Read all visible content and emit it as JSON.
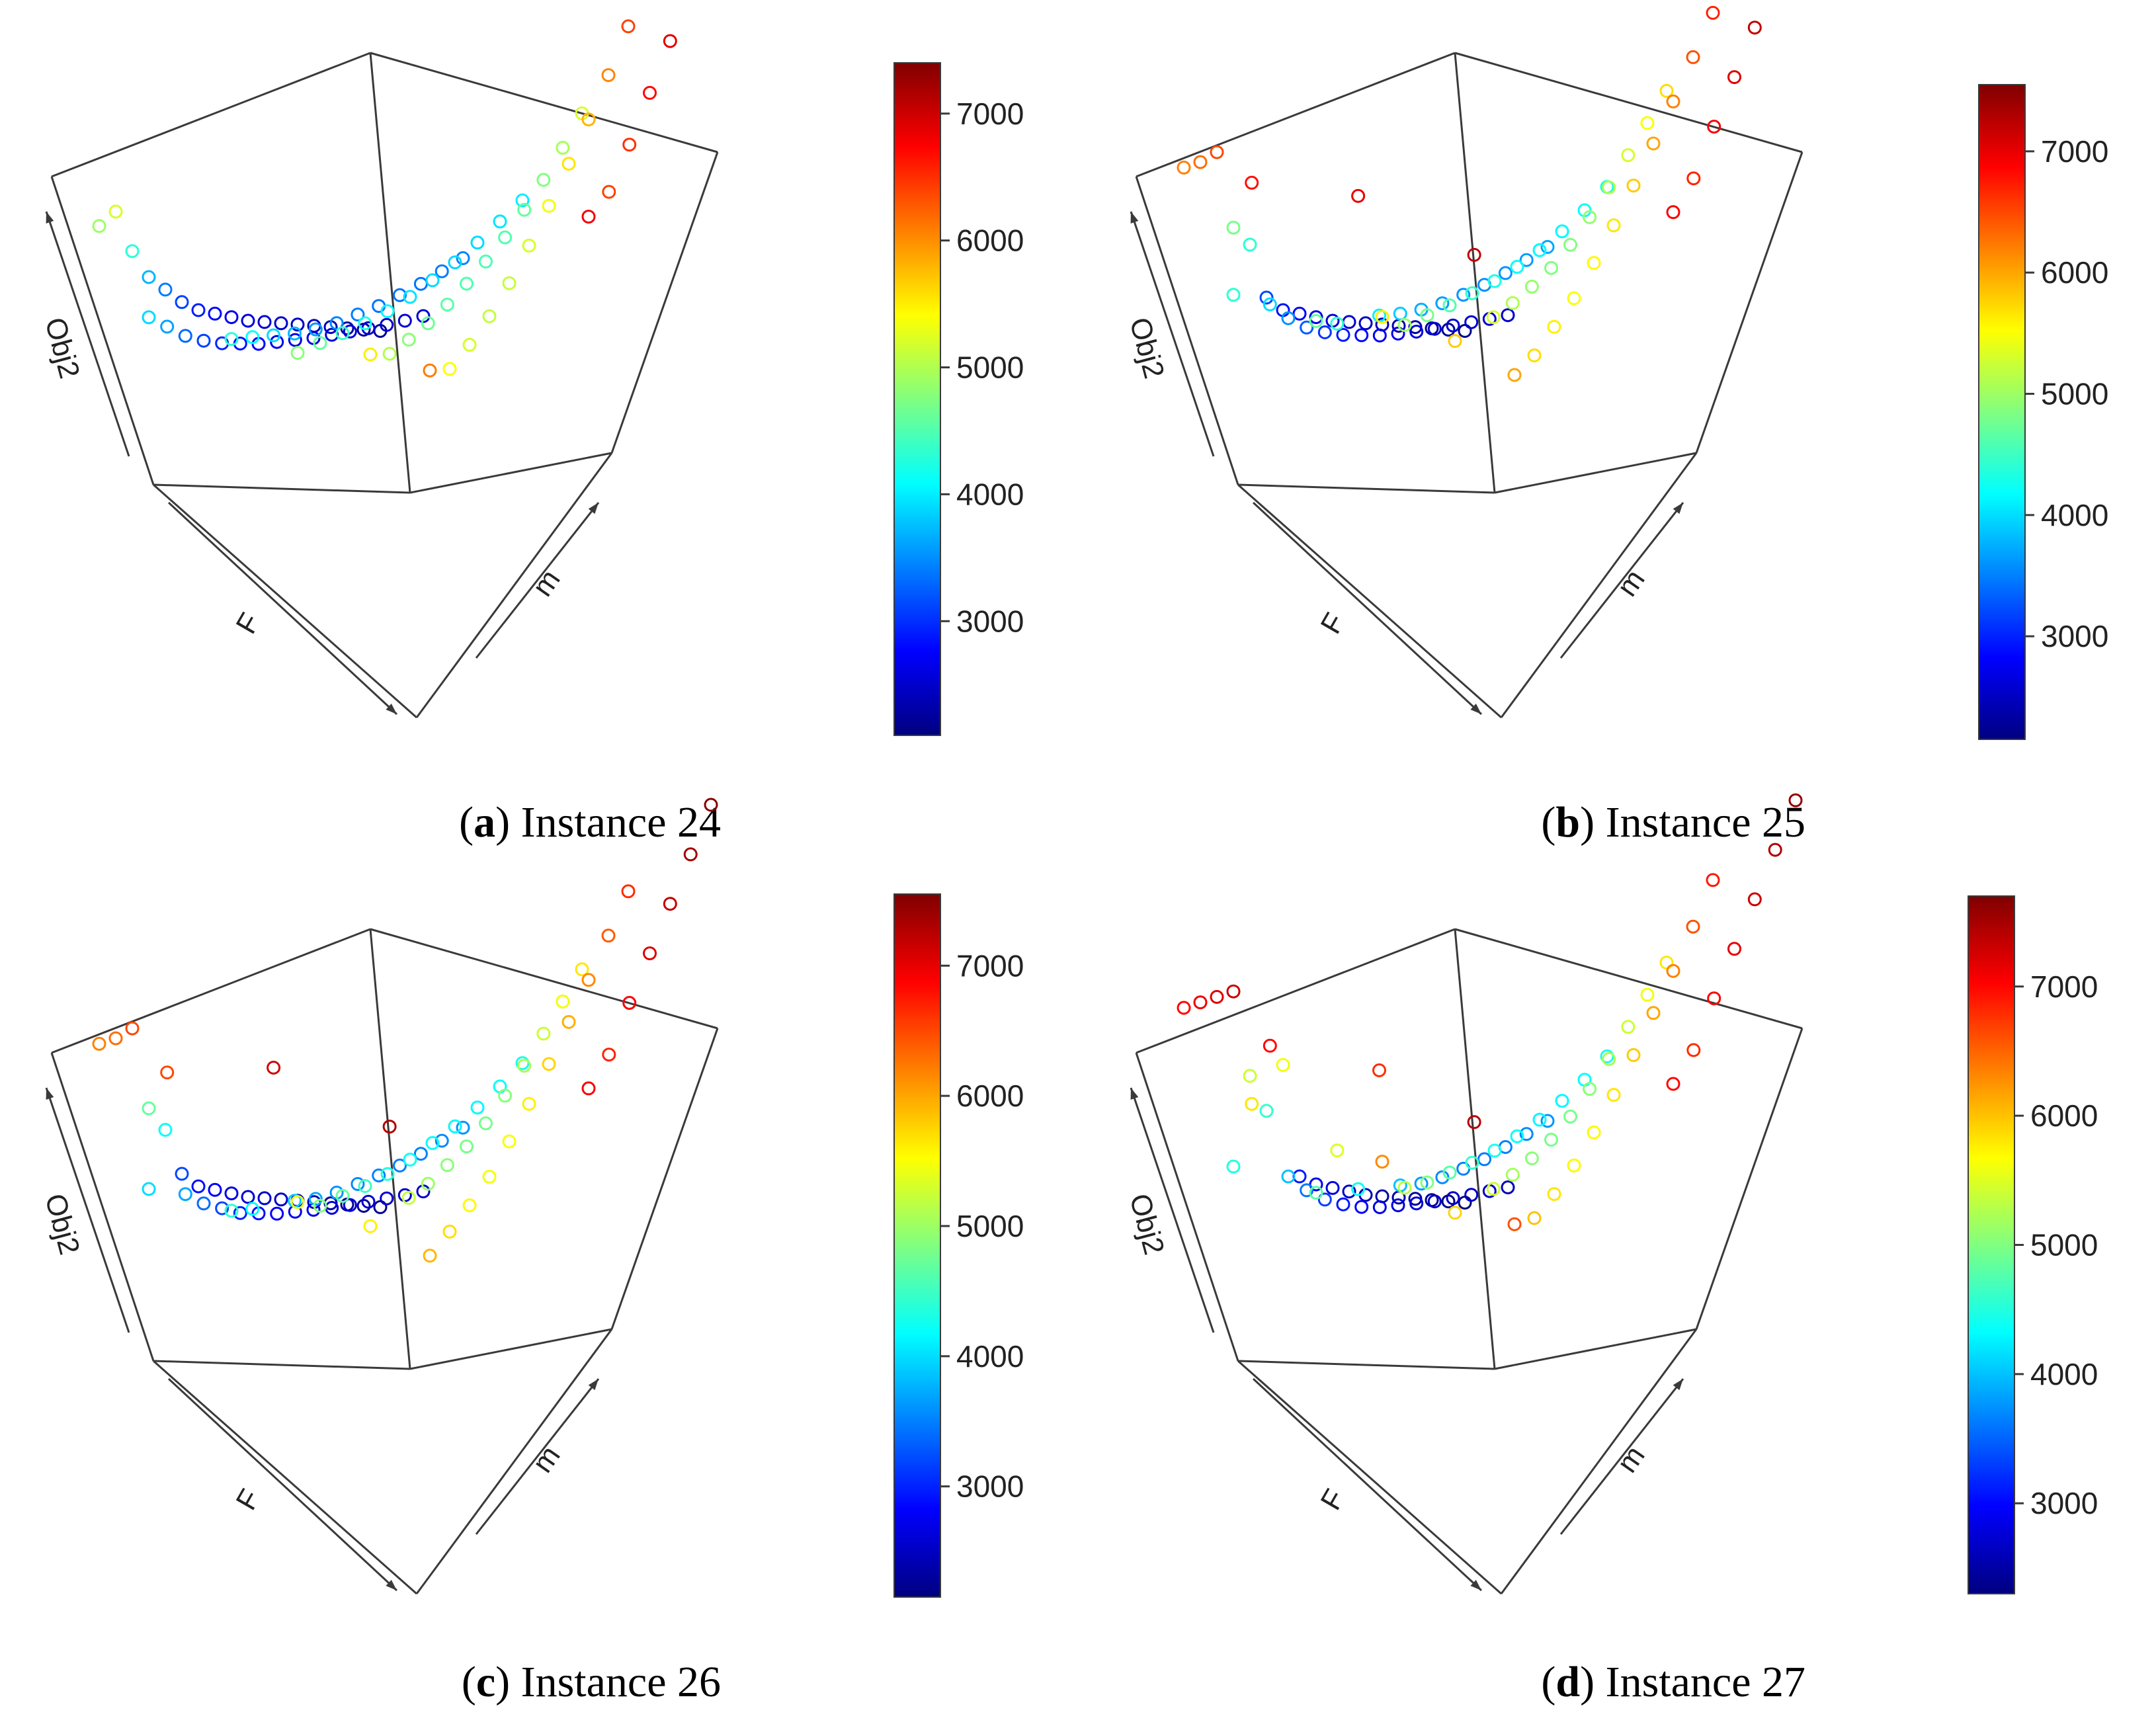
{
  "colorbar_colors": [
    "#000080",
    "#0000ff",
    "#0080ff",
    "#00ffff",
    "#80ff80",
    "#ffff00",
    "#ff8000",
    "#ff0000",
    "#800000"
  ],
  "chart_data": [
    {
      "type": "scatter3d",
      "caption_letter": "a",
      "caption_text": "Instance 24",
      "xlabel": "F",
      "ylabel": "m",
      "zlabel": "Obj2",
      "colorbar": {
        "min": 2100,
        "max": 7400,
        "ticks": [
          3000,
          4000,
          5000,
          6000,
          7000
        ]
      },
      "rows": [
        {
          "z": [
            4900,
            5200,
            4300,
            3700,
            3400,
            3100,
            2900,
            2800,
            2700,
            2600,
            2550,
            2500,
            2450,
            2400,
            2350,
            2300,
            2250,
            2200
          ]
        },
        {
          "z": [
            3900,
            3600,
            3300,
            3100,
            2950,
            2850,
            2750,
            2700,
            2650,
            2600,
            2580,
            2560,
            2540,
            2520,
            2520,
            2530
          ]
        },
        {
          "z": [
            4300,
            4100,
            3900,
            3700,
            3550,
            3450,
            3400,
            3350,
            3350,
            3360,
            3400,
            3450
          ]
        },
        {
          "z": [
            4800,
            4600,
            4400,
            4200,
            4050,
            3950,
            3900,
            3880,
            3900,
            3950,
            4000
          ]
        },
        {
          "z": [
            5500,
            5000,
            4800,
            4650,
            4550,
            4500,
            4480,
            4500,
            4600,
            4750,
            4950,
            5200
          ]
        },
        {
          "z": [
            6100,
            5400,
            5200,
            5100,
            5100,
            5200,
            5350,
            5550,
            5800,
            6050,
            6400
          ]
        },
        {
          "z": [
            6800,
            6400,
            6500,
            6700,
            6900,
            7100,
            7300
          ]
        }
      ]
    },
    {
      "type": "scatter3d",
      "caption_letter": "b",
      "caption_text": "Instance 25",
      "xlabel": "F",
      "ylabel": "m",
      "zlabel": "Obj2",
      "colorbar": {
        "min": 2150,
        "max": 7550,
        "ticks": [
          3000,
          4000,
          5000,
          6000,
          7000
        ]
      },
      "rows": [
        {
          "z": [
            6200,
            6300,
            6500,
            4800,
            4400,
            3200,
            2900,
            2800,
            2700,
            2600,
            2550,
            2500,
            2450,
            2400,
            2350,
            2300,
            2250,
            2200
          ]
        },
        {
          "z": [
            4400,
            6800,
            4000,
            3600,
            3300,
            3100,
            2950,
            2850,
            2750,
            2700,
            2650,
            2620,
            2600,
            2580,
            2560,
            2550
          ]
        },
        {
          "z": [
            4700,
            4400,
            7000,
            4100,
            3900,
            3750,
            3650,
            3600,
            3580,
            3600,
            3650,
            3700
          ]
        },
        {
          "z": [
            5600,
            5000,
            4800,
            4600,
            4450,
            4300,
            4200,
            4150,
            4150,
            4200,
            4300
          ]
        },
        {
          "z": [
            5800,
            7200,
            5300,
            5100,
            4950,
            4850,
            4850,
            4950,
            5100,
            5300,
            5500,
            5700
          ]
        },
        {
          "z": [
            6000,
            5700,
            5600,
            5500,
            5550,
            5650,
            5800,
            6000,
            6200,
            6450,
            6700
          ]
        },
        {
          "z": [
            6900,
            6700,
            6900,
            7050,
            7200,
            7350,
            7500
          ]
        }
      ]
    },
    {
      "type": "scatter3d",
      "caption_letter": "c",
      "caption_text": "Instance 26",
      "xlabel": "F",
      "ylabel": "m",
      "zlabel": "Obj2",
      "colorbar": {
        "min": 2150,
        "max": 7550,
        "ticks": [
          3000,
          4000,
          5000,
          6000,
          7000
        ]
      },
      "rows": [
        {
          "z": [
            6200,
            6300,
            6500,
            4700,
            4200,
            3200,
            2900,
            2800,
            2700,
            2600,
            2550,
            2500,
            2450,
            2400,
            2350,
            2300,
            2250,
            2200
          ]
        },
        {
          "z": [
            4000,
            6500,
            3700,
            3400,
            3200,
            3000,
            2900,
            2800,
            2750,
            2700,
            2650,
            2620,
            2600,
            2580,
            2560,
            2550
          ]
        },
        {
          "z": [
            4400,
            4200,
            7100,
            3900,
            3700,
            3600,
            3550,
            3500,
            3480,
            3500,
            3550,
            3600
          ]
        },
        {
          "z": [
            5400,
            4900,
            4700,
            4500,
            4350,
            4250,
            4200,
            4150,
            4150,
            4200,
            4300
          ]
        },
        {
          "z": [
            5600,
            7300,
            5200,
            5000,
            4900,
            4800,
            4800,
            4900,
            5050,
            5250,
            5450,
            5650
          ]
        },
        {
          "z": [
            5900,
            5700,
            5550,
            5450,
            5500,
            5600,
            5750,
            5950,
            6150,
            6400,
            6650
          ]
        },
        {
          "z": [
            6900,
            6700,
            6900,
            7050,
            7200,
            7350,
            7500
          ]
        }
      ]
    },
    {
      "type": "scatter3d",
      "caption_letter": "d",
      "caption_text": "Instance 27",
      "xlabel": "F",
      "ylabel": "m",
      "zlabel": "Obj2",
      "colorbar": {
        "min": 2300,
        "max": 7700,
        "ticks": [
          3000,
          4000,
          5000,
          6000,
          7000
        ]
      },
      "rows": [
        {
          "z": [
            7000,
            7100,
            7200,
            7300,
            5400,
            4600,
            5600,
            3100,
            2900,
            2800,
            2700,
            2600,
            2550,
            2500,
            2450,
            2400,
            2350,
            2300
          ]
        },
        {
          "z": [
            4500,
            5800,
            7000,
            4000,
            3600,
            3300,
            3100,
            2950,
            2850,
            2800,
            2750,
            2700,
            2680,
            2660,
            2650,
            2640
          ]
        },
        {
          "z": [
            4800,
            5500,
            4400,
            6800,
            4000,
            3800,
            3700,
            3650,
            3620,
            3650,
            3700,
            3750
          ]
        },
        {
          "z": [
            6300,
            5300,
            5000,
            4800,
            4600,
            4450,
            4350,
            4300,
            4300,
            4350,
            4450
          ]
        },
        {
          "z": [
            5900,
            7400,
            5400,
            5200,
            5050,
            4950,
            4950,
            5050,
            5200,
            5400,
            5600,
            5800
          ]
        },
        {
          "z": [
            6600,
            6000,
            5800,
            5700,
            5700,
            5800,
            5950,
            6150,
            6350,
            6600,
            6900
          ]
        },
        {
          "z": [
            7000,
            6800,
            7000,
            7150,
            7300,
            7450,
            7600
          ]
        }
      ]
    }
  ]
}
